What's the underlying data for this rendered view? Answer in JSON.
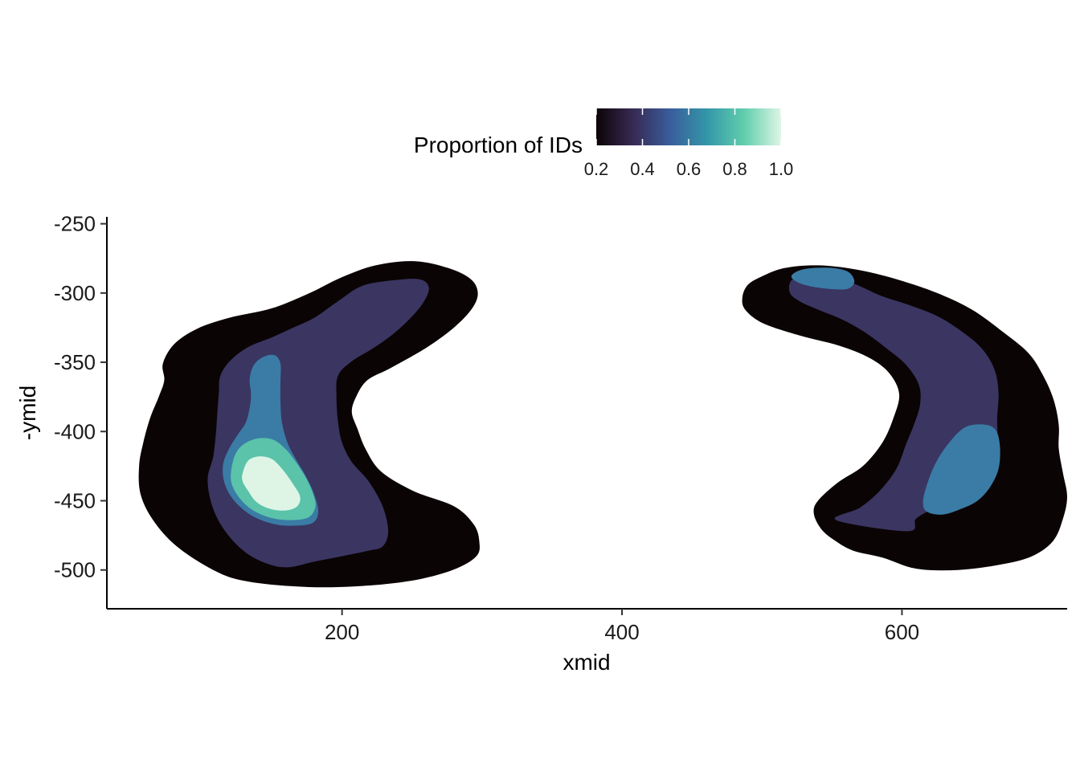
{
  "chart_data": {
    "type": "contour",
    "title": "",
    "xlabel": "xmid",
    "ylabel": "-ymid",
    "xlim": [
      32,
      718
    ],
    "ylim": [
      -528,
      -245
    ],
    "x_ticks": [
      200,
      400,
      600
    ],
    "y_ticks": [
      -250,
      -300,
      -350,
      -400,
      -450,
      -500
    ],
    "grid": false,
    "legend": {
      "title": "Proportion of IDs",
      "placement": "top",
      "ticks": [
        0.2,
        0.4,
        0.6,
        0.8,
        1.0
      ],
      "tick_labels": [
        "0.2",
        "0.4",
        "0.6",
        "0.8",
        "1.0"
      ],
      "range": [
        0.2,
        1.0
      ],
      "gradient": [
        "#0b0405",
        "#382a54",
        "#395d9c",
        "#3497a9",
        "#60ceac",
        "#def5e5"
      ]
    },
    "levels": [
      {
        "level": 0.2,
        "color": "#0b0405"
      },
      {
        "level": 0.4,
        "color": "#3b3562"
      },
      {
        "level": 0.6,
        "color": "#3a7ca5"
      },
      {
        "level": 0.8,
        "color": "#5ac3aa"
      },
      {
        "level": 1.0,
        "color": "#def5e5"
      }
    ],
    "regions": [
      {
        "level": 0.2,
        "points": [
          [
            55,
            -425
          ],
          [
            58,
            -408
          ],
          [
            63,
            -390
          ],
          [
            69,
            -375
          ],
          [
            73,
            -363
          ],
          [
            72,
            -351
          ],
          [
            80,
            -337
          ],
          [
            96,
            -326
          ],
          [
            119,
            -318
          ],
          [
            150,
            -311
          ],
          [
            177,
            -300
          ],
          [
            199,
            -289
          ],
          [
            224,
            -280
          ],
          [
            252,
            -277
          ],
          [
            276,
            -282
          ],
          [
            292,
            -290
          ],
          [
            297,
            -300
          ],
          [
            293,
            -311
          ],
          [
            281,
            -324
          ],
          [
            261,
            -339
          ],
          [
            235,
            -354
          ],
          [
            218,
            -363
          ],
          [
            210,
            -375
          ],
          [
            207,
            -386
          ],
          [
            211,
            -398
          ],
          [
            217,
            -413
          ],
          [
            228,
            -429
          ],
          [
            251,
            -443
          ],
          [
            280,
            -454
          ],
          [
            294,
            -467
          ],
          [
            298,
            -479
          ],
          [
            296,
            -490
          ],
          [
            279,
            -500
          ],
          [
            248,
            -508
          ],
          [
            207,
            -512
          ],
          [
            169,
            -512
          ],
          [
            131,
            -508
          ],
          [
            108,
            -500
          ],
          [
            82,
            -483
          ],
          [
            65,
            -464
          ],
          [
            56,
            -445
          ]
        ]
      },
      {
        "level": 0.2,
        "points": [
          [
            537,
            -459
          ],
          [
            542,
            -470
          ],
          [
            551,
            -478
          ],
          [
            565,
            -486
          ],
          [
            586,
            -491
          ],
          [
            610,
            -499
          ],
          [
            640,
            -500
          ],
          [
            671,
            -496
          ],
          [
            693,
            -490
          ],
          [
            708,
            -479
          ],
          [
            715,
            -463
          ],
          [
            718,
            -447
          ],
          [
            715,
            -430
          ],
          [
            712,
            -412
          ],
          [
            712,
            -395
          ],
          [
            708,
            -376
          ],
          [
            700,
            -358
          ],
          [
            690,
            -343
          ],
          [
            672,
            -328
          ],
          [
            650,
            -312
          ],
          [
            625,
            -300
          ],
          [
            596,
            -290
          ],
          [
            567,
            -283
          ],
          [
            540,
            -280
          ],
          [
            516,
            -282
          ],
          [
            500,
            -288
          ],
          [
            490,
            -294
          ],
          [
            486,
            -303
          ],
          [
            488,
            -312
          ],
          [
            501,
            -322
          ],
          [
            528,
            -331
          ],
          [
            555,
            -338
          ],
          [
            577,
            -347
          ],
          [
            591,
            -358
          ],
          [
            598,
            -373
          ],
          [
            594,
            -390
          ],
          [
            586,
            -408
          ],
          [
            572,
            -425
          ],
          [
            554,
            -437
          ],
          [
            540,
            -450
          ]
        ]
      },
      {
        "level": 0.4,
        "points": [
          [
            104,
            -435
          ],
          [
            108,
            -418
          ],
          [
            110,
            -400
          ],
          [
            111,
            -385
          ],
          [
            112,
            -372
          ],
          [
            113,
            -360
          ],
          [
            120,
            -349
          ],
          [
            133,
            -339
          ],
          [
            150,
            -332
          ],
          [
            165,
            -325
          ],
          [
            180,
            -318
          ],
          [
            197,
            -306
          ],
          [
            214,
            -295
          ],
          [
            235,
            -291
          ],
          [
            255,
            -290
          ],
          [
            262,
            -296
          ],
          [
            258,
            -307
          ],
          [
            248,
            -319
          ],
          [
            236,
            -330
          ],
          [
            222,
            -340
          ],
          [
            206,
            -350
          ],
          [
            197,
            -360
          ],
          [
            196,
            -375
          ],
          [
            197,
            -392
          ],
          [
            200,
            -408
          ],
          [
            207,
            -422
          ],
          [
            219,
            -436
          ],
          [
            229,
            -454
          ],
          [
            233,
            -472
          ],
          [
            229,
            -483
          ],
          [
            219,
            -486
          ],
          [
            200,
            -490
          ],
          [
            180,
            -494
          ],
          [
            162,
            -498
          ],
          [
            148,
            -496
          ],
          [
            132,
            -488
          ],
          [
            118,
            -474
          ],
          [
            108,
            -456
          ]
        ]
      },
      {
        "level": 0.4,
        "points": [
          [
            604,
            -472
          ],
          [
            610,
            -463
          ],
          [
            622,
            -456
          ],
          [
            638,
            -449
          ],
          [
            653,
            -442
          ],
          [
            663,
            -427
          ],
          [
            668,
            -410
          ],
          [
            668,
            -390
          ],
          [
            669,
            -372
          ],
          [
            666,
            -355
          ],
          [
            657,
            -340
          ],
          [
            643,
            -328
          ],
          [
            626,
            -317
          ],
          [
            606,
            -309
          ],
          [
            585,
            -302
          ],
          [
            565,
            -293
          ],
          [
            546,
            -288
          ],
          [
            532,
            -286
          ],
          [
            521,
            -291
          ],
          [
            520,
            -300
          ],
          [
            527,
            -306
          ],
          [
            540,
            -312
          ],
          [
            557,
            -319
          ],
          [
            573,
            -328
          ],
          [
            589,
            -340
          ],
          [
            603,
            -352
          ],
          [
            612,
            -366
          ],
          [
            613,
            -380
          ],
          [
            609,
            -394
          ],
          [
            603,
            -409
          ],
          [
            596,
            -427
          ],
          [
            584,
            -443
          ],
          [
            570,
            -455
          ],
          [
            553,
            -464
          ]
        ]
      },
      {
        "level": 0.6,
        "points": [
          [
            115,
            -424
          ],
          [
            119,
            -413
          ],
          [
            125,
            -403
          ],
          [
            131,
            -394
          ],
          [
            134,
            -383
          ],
          [
            135,
            -373
          ],
          [
            134,
            -362
          ],
          [
            137,
            -352
          ],
          [
            144,
            -346
          ],
          [
            152,
            -345
          ],
          [
            156,
            -351
          ],
          [
            156,
            -364
          ],
          [
            156,
            -378
          ],
          [
            157,
            -393
          ],
          [
            161,
            -408
          ],
          [
            167,
            -420
          ],
          [
            174,
            -432
          ],
          [
            180,
            -445
          ],
          [
            183,
            -458
          ],
          [
            179,
            -466
          ],
          [
            166,
            -468
          ],
          [
            152,
            -467
          ],
          [
            136,
            -461
          ],
          [
            123,
            -450
          ],
          [
            116,
            -437
          ]
        ]
      },
      {
        "level": 0.6,
        "points": [
          [
            615,
            -451
          ],
          [
            618,
            -438
          ],
          [
            624,
            -423
          ],
          [
            633,
            -409
          ],
          [
            645,
            -397
          ],
          [
            659,
            -395
          ],
          [
            667,
            -399
          ],
          [
            670,
            -411
          ],
          [
            669,
            -427
          ],
          [
            663,
            -440
          ],
          [
            654,
            -450
          ],
          [
            642,
            -456
          ],
          [
            629,
            -460
          ],
          [
            618,
            -458
          ]
        ]
      },
      {
        "level": 0.6,
        "points": [
          [
            521,
            -288
          ],
          [
            525,
            -292
          ],
          [
            534,
            -295
          ],
          [
            548,
            -297
          ],
          [
            561,
            -297
          ],
          [
            566,
            -292
          ],
          [
            562,
            -285
          ],
          [
            551,
            -282
          ],
          [
            536,
            -282
          ],
          [
            526,
            -284
          ]
        ]
      },
      {
        "level": 0.8,
        "points": [
          [
            121,
            -427
          ],
          [
            124,
            -416
          ],
          [
            130,
            -409
          ],
          [
            140,
            -405
          ],
          [
            151,
            -406
          ],
          [
            160,
            -413
          ],
          [
            167,
            -422
          ],
          [
            174,
            -433
          ],
          [
            179,
            -444
          ],
          [
            181,
            -454
          ],
          [
            176,
            -462
          ],
          [
            163,
            -464
          ],
          [
            148,
            -462
          ],
          [
            135,
            -456
          ],
          [
            126,
            -447
          ],
          [
            121,
            -437
          ]
        ]
      },
      {
        "level": 1.0,
        "points": [
          [
            129,
            -430
          ],
          [
            133,
            -421
          ],
          [
            141,
            -418
          ],
          [
            150,
            -420
          ],
          [
            158,
            -428
          ],
          [
            165,
            -438
          ],
          [
            170,
            -447
          ],
          [
            168,
            -454
          ],
          [
            160,
            -457
          ],
          [
            149,
            -456
          ],
          [
            139,
            -451
          ],
          [
            133,
            -443
          ],
          [
            129,
            -436
          ]
        ]
      }
    ]
  }
}
